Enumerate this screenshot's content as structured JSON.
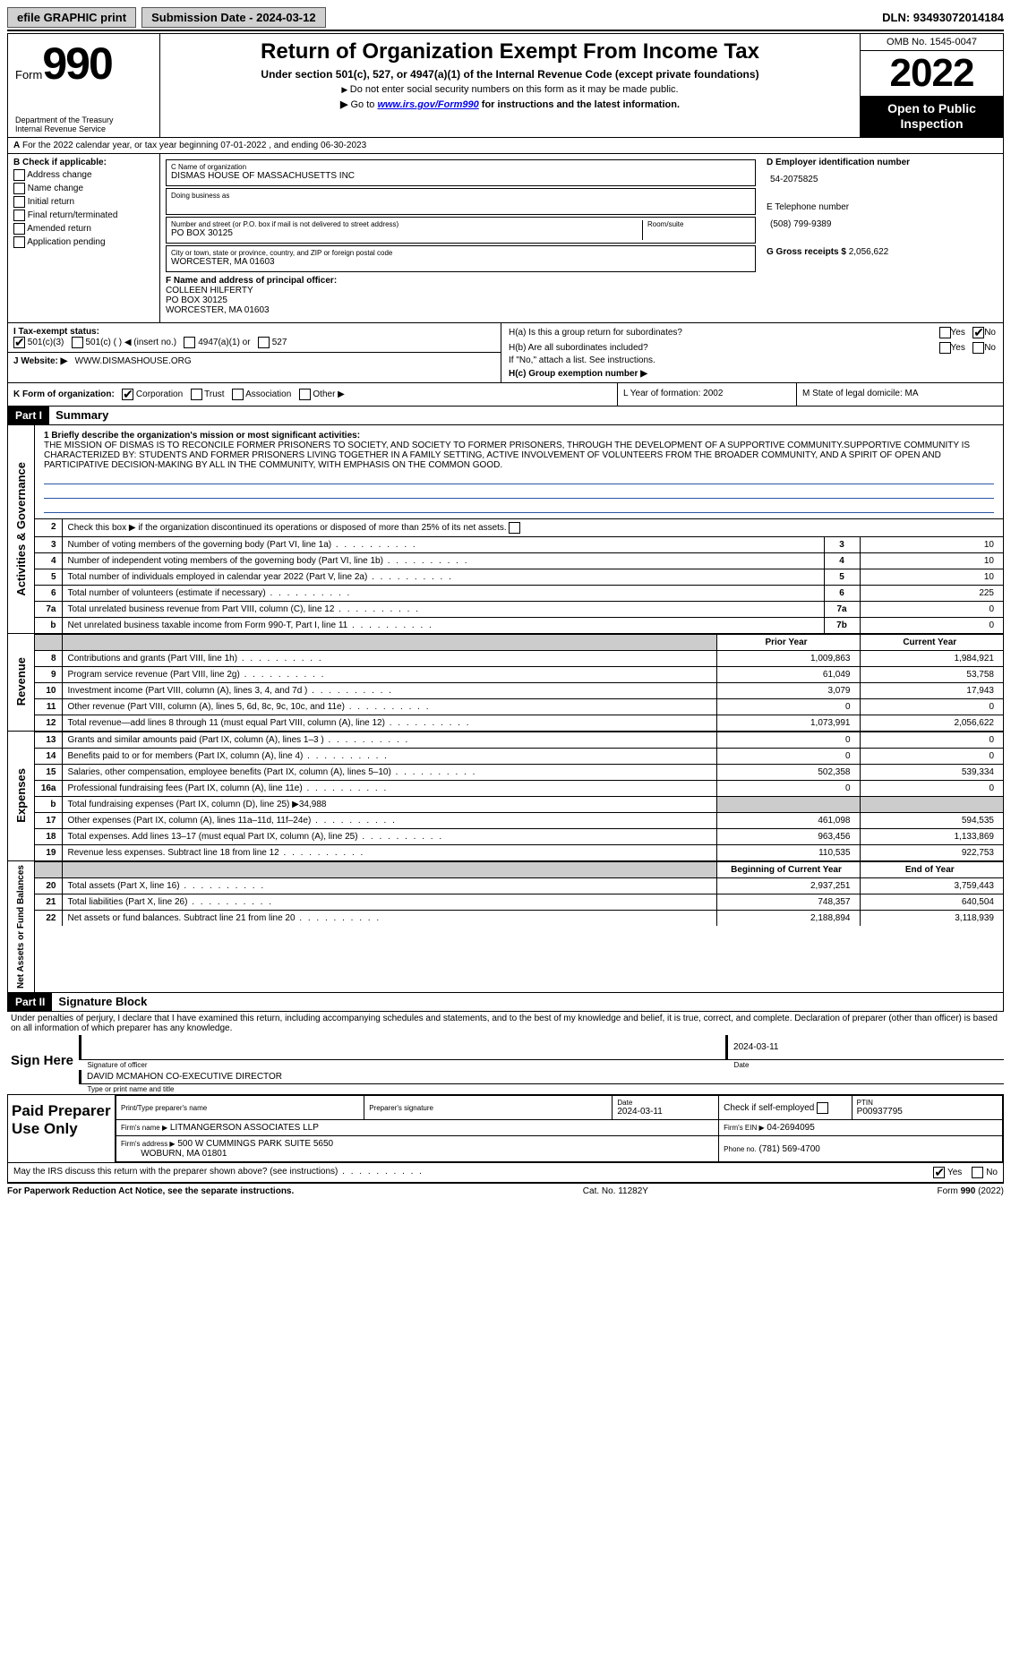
{
  "topbar": {
    "efile": "efile GRAPHIC print",
    "submission_label": "Submission Date - 2024-03-12",
    "dln_label": "DLN: 93493072014184"
  },
  "header": {
    "form_word": "Form",
    "form_num": "990",
    "dept": "Department of the Treasury\nInternal Revenue Service",
    "title": "Return of Organization Exempt From Income Tax",
    "subtitle": "Under section 501(c), 527, or 4947(a)(1) of the Internal Revenue Code (except private foundations)",
    "note1": "Do not enter social security numbers on this form as it may be made public.",
    "note2_pre": "Go to ",
    "note2_link": "www.irs.gov/Form990",
    "note2_post": " for instructions and the latest information.",
    "omb": "OMB No. 1545-0047",
    "year": "2022",
    "open": "Open to Public Inspection"
  },
  "secA": {
    "text": "For the 2022 calendar year, or tax year beginning 07-01-2022    , and ending 06-30-2023",
    "A": "A"
  },
  "colB": {
    "hdr": "B Check if applicable:",
    "items": [
      "Address change",
      "Name change",
      "Initial return",
      "Final return/terminated",
      "Amended return",
      "Application pending"
    ]
  },
  "colC": {
    "name_label": "C Name of organization",
    "name": "DISMAS HOUSE OF MASSACHUSETTS INC",
    "dba_label": "Doing business as",
    "addr_label": "Number and street (or P.O. box if mail is not delivered to street address)",
    "room_label": "Room/suite",
    "addr": "PO BOX 30125",
    "city_label": "City or town, state or province, country, and ZIP or foreign postal code",
    "city": "WORCESTER, MA  01603",
    "f_label": "F  Name and address of principal officer:",
    "f_name": "COLLEEN HILFERTY",
    "f_addr1": "PO BOX 30125",
    "f_addr2": "WORCESTER, MA  01603"
  },
  "colD": {
    "d_label": "D Employer identification number",
    "d_val": "54-2075825",
    "e_label": "E Telephone number",
    "e_val": "(508) 799-9389",
    "g_label": "G Gross receipts $",
    "g_val": "2,056,622"
  },
  "colH": {
    "ha_label": "H(a)  Is this a group return for subordinates?",
    "hb_label": "H(b)  Are all subordinates included?",
    "hb_note": "If \"No,\" attach a list. See instructions.",
    "hc_label": "H(c)  Group exemption number ▶",
    "yes": "Yes",
    "no": "No"
  },
  "rowI": {
    "label": "I  Tax-exempt status:",
    "o1": "501(c)(3)",
    "o2": "501(c) (  ) ◀ (insert no.)",
    "o3": "4947(a)(1) or",
    "o4": "527"
  },
  "rowJ": {
    "label": "J  Website: ▶",
    "val": "WWW.DISMASHOUSE.ORG"
  },
  "rowK": {
    "label": "K Form of organization:",
    "o1": "Corporation",
    "o2": "Trust",
    "o3": "Association",
    "o4": "Other ▶"
  },
  "rowL": {
    "label": "L Year of formation: 2002"
  },
  "rowM": {
    "label": "M State of legal domicile: MA"
  },
  "part1": {
    "hdr": "Part I",
    "title": "Summary",
    "q1": "1  Briefly describe the organization's mission or most significant activities:",
    "mission": "THE MISSION OF DISMAS IS TO RECONCILE FORMER PRISONERS TO SOCIETY, AND SOCIETY TO FORMER PRISONERS, THROUGH THE DEVELOPMENT OF A SUPPORTIVE COMMUNITY.SUPPORTIVE COMMUNITY IS CHARACTERIZED BY: STUDENTS AND FORMER PRISONERS LIVING TOGETHER IN A FAMILY SETTING, ACTIVE INVOLVEMENT OF VOLUNTEERS FROM THE BROADER COMMUNITY, AND A SPIRIT OF OPEN AND PARTICIPATIVE DECISION-MAKING BY ALL IN THE COMMUNITY, WITH EMPHASIS ON THE COMMON GOOD.",
    "q2": "Check this box ▶      if the organization discontinued its operations or disposed of more than 25% of its net assets.",
    "side_ag": "Activities & Governance",
    "side_rev": "Revenue",
    "side_exp": "Expenses",
    "side_nafb": "Net Assets or Fund Balances"
  },
  "govRows": [
    {
      "n": "3",
      "label": "Number of voting members of the governing body (Part VI, line 1a)",
      "ln": "3",
      "v": "10"
    },
    {
      "n": "4",
      "label": "Number of independent voting members of the governing body (Part VI, line 1b)",
      "ln": "4",
      "v": "10"
    },
    {
      "n": "5",
      "label": "Total number of individuals employed in calendar year 2022 (Part V, line 2a)",
      "ln": "5",
      "v": "10"
    },
    {
      "n": "6",
      "label": "Total number of volunteers (estimate if necessary)",
      "ln": "6",
      "v": "225"
    },
    {
      "n": "7a",
      "label": "Total unrelated business revenue from Part VIII, column (C), line 12",
      "ln": "7a",
      "v": "0"
    },
    {
      "n": "b",
      "label": "Net unrelated business taxable income from Form 990-T, Part I, line 11",
      "ln": "7b",
      "v": "0"
    }
  ],
  "twoColHdr": {
    "prior": "Prior Year",
    "current": "Current Year"
  },
  "revRows": [
    {
      "n": "8",
      "label": "Contributions and grants (Part VIII, line 1h)",
      "p": "1,009,863",
      "c": "1,984,921"
    },
    {
      "n": "9",
      "label": "Program service revenue (Part VIII, line 2g)",
      "p": "61,049",
      "c": "53,758"
    },
    {
      "n": "10",
      "label": "Investment income (Part VIII, column (A), lines 3, 4, and 7d )",
      "p": "3,079",
      "c": "17,943"
    },
    {
      "n": "11",
      "label": "Other revenue (Part VIII, column (A), lines 5, 6d, 8c, 9c, 10c, and 11e)",
      "p": "0",
      "c": "0"
    },
    {
      "n": "12",
      "label": "Total revenue—add lines 8 through 11 (must equal Part VIII, column (A), line 12)",
      "p": "1,073,991",
      "c": "2,056,622"
    }
  ],
  "expRows": [
    {
      "n": "13",
      "label": "Grants and similar amounts paid (Part IX, column (A), lines 1–3 )",
      "p": "0",
      "c": "0"
    },
    {
      "n": "14",
      "label": "Benefits paid to or for members (Part IX, column (A), line 4)",
      "p": "0",
      "c": "0"
    },
    {
      "n": "15",
      "label": "Salaries, other compensation, employee benefits (Part IX, column (A), lines 5–10)",
      "p": "502,358",
      "c": "539,334"
    },
    {
      "n": "16a",
      "label": "Professional fundraising fees (Part IX, column (A), line 11e)",
      "p": "0",
      "c": "0"
    }
  ],
  "exp16b": {
    "n": "b",
    "label": "Total fundraising expenses (Part IX, column (D), line 25) ▶34,988"
  },
  "expRows2": [
    {
      "n": "17",
      "label": "Other expenses (Part IX, column (A), lines 11a–11d, 11f–24e)",
      "p": "461,098",
      "c": "594,535"
    },
    {
      "n": "18",
      "label": "Total expenses. Add lines 13–17 (must equal Part IX, column (A), line 25)",
      "p": "963,456",
      "c": "1,133,869"
    },
    {
      "n": "19",
      "label": "Revenue less expenses. Subtract line 18 from line 12",
      "p": "110,535",
      "c": "922,753"
    }
  ],
  "nafbHdr": {
    "begin": "Beginning of Current Year",
    "end": "End of Year"
  },
  "nafbRows": [
    {
      "n": "20",
      "label": "Total assets (Part X, line 16)",
      "p": "2,937,251",
      "c": "3,759,443"
    },
    {
      "n": "21",
      "label": "Total liabilities (Part X, line 26)",
      "p": "748,357",
      "c": "640,504"
    },
    {
      "n": "22",
      "label": "Net assets or fund balances. Subtract line 21 from line 20",
      "p": "2,188,894",
      "c": "3,118,939"
    }
  ],
  "part2": {
    "hdr": "Part II",
    "title": "Signature Block",
    "decl": "Under penalties of perjury, I declare that I have examined this return, including accompanying schedules and statements, and to the best of my knowledge and belief, it is true, correct, and complete. Declaration of preparer (other than officer) is based on all information of which preparer has any knowledge.",
    "sign_here": "Sign Here",
    "sig_officer": "Signature of officer",
    "sig_date": "2024-03-11",
    "date_label": "Date",
    "name_title": "DAVID MCMAHON  CO-EXECUTIVE DIRECTOR",
    "name_title_label": "Type or print name and title",
    "paid": "Paid Preparer Use Only",
    "pt_name_label": "Print/Type preparer's name",
    "pt_sig_label": "Preparer's signature",
    "pt_date_label": "Date",
    "pt_date": "2024-03-11",
    "pt_self": "Check       if self-employed",
    "pt_ptin_label": "PTIN",
    "pt_ptin": "P00937795",
    "firm_name_label": "Firm's name    ▶",
    "firm_name": "LITMANGERSON ASSOCIATES LLP",
    "firm_ein_label": "Firm's EIN ▶",
    "firm_ein": "04-2694095",
    "firm_addr_label": "Firm's address ▶",
    "firm_addr1": "500 W CUMMINGS PARK SUITE 5650",
    "firm_addr2": "WOBURN, MA  01801",
    "phone_label": "Phone no.",
    "phone": "(781) 569-4700",
    "may_irs": "May the IRS discuss this return with the preparer shown above? (see instructions)",
    "yes": "Yes",
    "no": "No"
  },
  "footer": {
    "pra": "For Paperwork Reduction Act Notice, see the separate instructions.",
    "cat": "Cat. No. 11282Y",
    "form": "Form 990 (2022)"
  }
}
